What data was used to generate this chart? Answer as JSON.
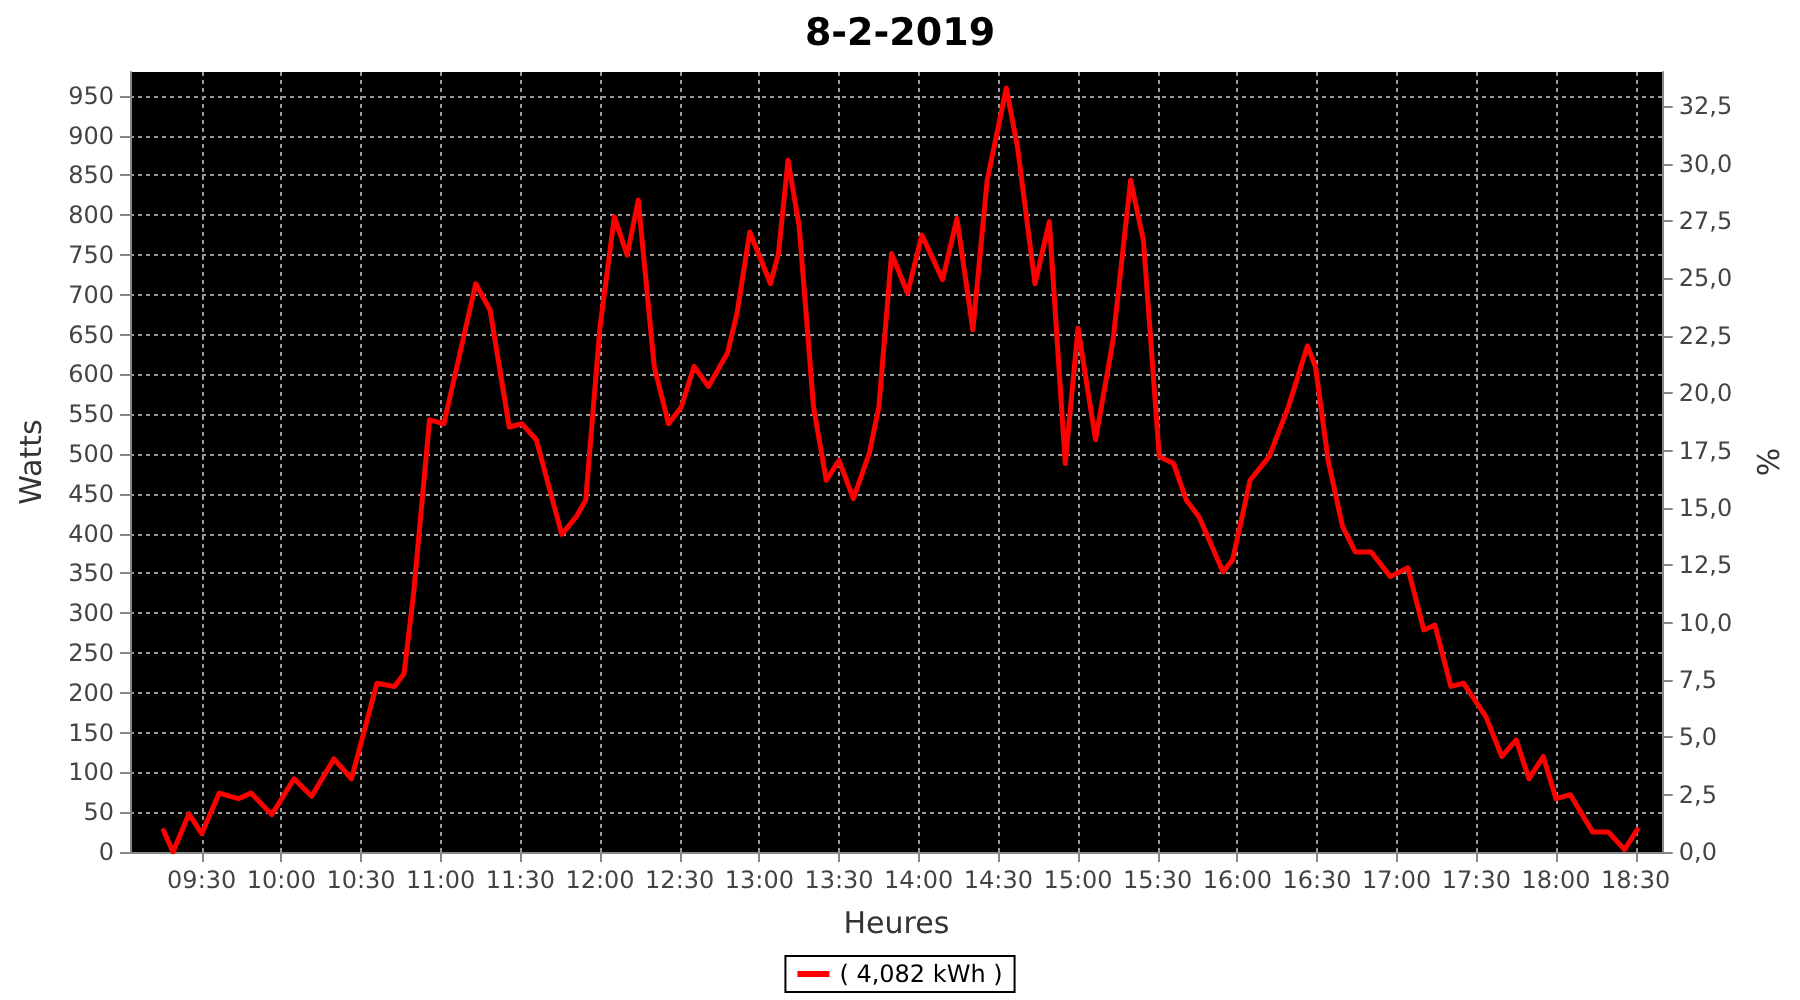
{
  "chart_data": {
    "type": "line",
    "title": "8-2-2019",
    "xlabel": "Heures",
    "ylabel": "Watts",
    "y2label": "%",
    "xlim": [
      9.05,
      18.67
    ],
    "ylim": [
      0,
      980
    ],
    "y2lim": [
      0,
      34
    ],
    "xticks": [
      {
        "value": 9.5,
        "label": "09:30"
      },
      {
        "value": 10,
        "label": "10:00"
      },
      {
        "value": 10.5,
        "label": "10:30"
      },
      {
        "value": 11,
        "label": "11:00"
      },
      {
        "value": 11.5,
        "label": "11:30"
      },
      {
        "value": 12,
        "label": "12:00"
      },
      {
        "value": 12.5,
        "label": "12:30"
      },
      {
        "value": 13,
        "label": "13:00"
      },
      {
        "value": 13.5,
        "label": "13:30"
      },
      {
        "value": 14,
        "label": "14:00"
      },
      {
        "value": 14.5,
        "label": "14:30"
      },
      {
        "value": 15,
        "label": "15:00"
      },
      {
        "value": 15.5,
        "label": "15:30"
      },
      {
        "value": 16,
        "label": "16:00"
      },
      {
        "value": 16.5,
        "label": "16:30"
      },
      {
        "value": 17,
        "label": "17:00"
      },
      {
        "value": 17.5,
        "label": "17:30"
      },
      {
        "value": 18,
        "label": "18:00"
      },
      {
        "value": 18.5,
        "label": "18:30"
      }
    ],
    "yticks": [
      0,
      50,
      100,
      150,
      200,
      250,
      300,
      350,
      400,
      450,
      500,
      550,
      600,
      650,
      700,
      750,
      800,
      850,
      900,
      950
    ],
    "y2ticks": [
      {
        "value": 0,
        "label": "0,0"
      },
      {
        "value": 2.5,
        "label": "2,5"
      },
      {
        "value": 5,
        "label": "5,0"
      },
      {
        "value": 7.5,
        "label": "7,5"
      },
      {
        "value": 10,
        "label": "10,0"
      },
      {
        "value": 12.5,
        "label": "12,5"
      },
      {
        "value": 15,
        "label": "15,0"
      },
      {
        "value": 17.5,
        "label": "17,5"
      },
      {
        "value": 20,
        "label": "20,0"
      },
      {
        "value": 22.5,
        "label": "22,5"
      },
      {
        "value": 25,
        "label": "25,0"
      },
      {
        "value": 27.5,
        "label": "27,5"
      },
      {
        "value": 30,
        "label": "30,0"
      },
      {
        "value": 32.5,
        "label": "32,5"
      }
    ],
    "grid": true,
    "legend": "bottom",
    "marker": "none",
    "line_style": "solid",
    "series": [
      {
        "name": "( 4,082 kWh )",
        "color": "#ff0000",
        "x": [
          9.26,
          9.32,
          9.42,
          9.5,
          9.61,
          9.73,
          9.81,
          9.94,
          10.08,
          10.19,
          10.33,
          10.44,
          10.6,
          10.71,
          10.77,
          10.83,
          10.93,
          11.02,
          11.22,
          11.31,
          11.43,
          11.51,
          11.6,
          11.76,
          11.85,
          11.91,
          12.0,
          12.09,
          12.17,
          12.24,
          12.34,
          12.43,
          12.51,
          12.59,
          12.68,
          12.8,
          12.86,
          12.94,
          13.07,
          13.12,
          13.18,
          13.25,
          13.34,
          13.42,
          13.5,
          13.59,
          13.69,
          13.75,
          13.83,
          13.93,
          14.02,
          14.15,
          14.24,
          14.34,
          14.43,
          14.55,
          14.62,
          14.73,
          14.82,
          14.92,
          15.0,
          15.11,
          15.22,
          15.33,
          15.41,
          15.51,
          15.6,
          15.68,
          15.76,
          15.91,
          15.97,
          16.08,
          16.2,
          16.32,
          16.44,
          16.49,
          16.57,
          16.66,
          16.74,
          16.84,
          16.96,
          17.07,
          17.17,
          17.24,
          17.34,
          17.42,
          17.56,
          17.66,
          17.75,
          17.83,
          17.92,
          18.0,
          18.09,
          18.23,
          18.33,
          18.43,
          18.51
        ],
        "values": [
          27,
          0,
          48,
          23,
          74,
          67,
          74,
          47,
          92,
          70,
          117,
          92,
          212,
          208,
          224,
          325,
          543,
          538,
          714,
          681,
          534,
          538,
          518,
          399,
          421,
          442,
          660,
          798,
          750,
          819,
          610,
          538,
          559,
          610,
          585,
          627,
          677,
          779,
          714,
          752,
          869,
          786,
          559,
          467,
          492,
          444,
          501,
          559,
          752,
          702,
          775,
          719,
          796,
          656,
          844,
          960,
          886,
          714,
          792,
          488,
          658,
          518,
          643,
          844,
          769,
          497,
          488,
          442,
          421,
          352,
          367,
          467,
          497,
          559,
          636,
          610,
          492,
          409,
          377,
          377,
          346,
          357,
          279,
          285,
          208,
          212,
          170,
          120,
          141,
          92,
          120,
          67,
          72,
          25,
          25,
          3,
          28
        ]
      }
    ]
  }
}
